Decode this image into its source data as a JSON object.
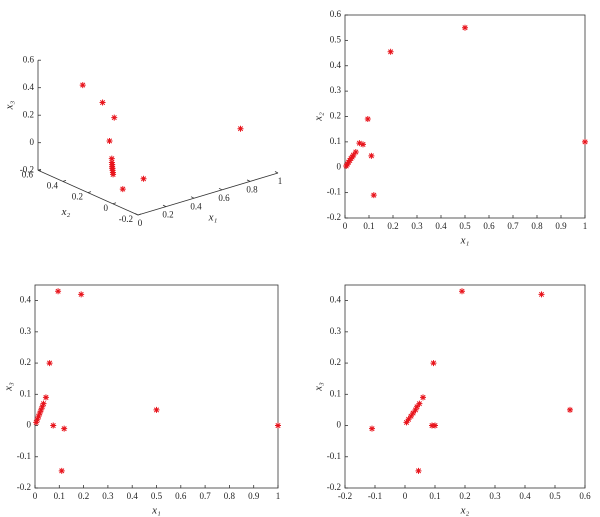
{
  "chart_data": [
    {
      "type": "scatter3d",
      "xlabel": "x₁",
      "ylabel": "x₂",
      "zlabel": "x₃",
      "xlim": [
        0,
        1
      ],
      "xticks": [
        0,
        0.2,
        0.4,
        0.6,
        0.8,
        1
      ],
      "ylim": [
        -0.2,
        0.6
      ],
      "yticks": [
        -0.2,
        0,
        0.2,
        0.4,
        0.6
      ],
      "zlim": [
        -0.2,
        0.6
      ],
      "zticks": [
        -0.2,
        0,
        0.2,
        0.4,
        0.6
      ],
      "color": "#e8141c",
      "x": [
        1,
        0.5,
        0.19,
        0.095,
        0.06,
        0.12,
        0.11,
        0.075,
        0.005,
        0.01,
        0.015,
        0.02,
        0.025,
        0.03,
        0.035,
        0.045
      ],
      "y": [
        0.1,
        0.55,
        0.455,
        0.19,
        0.095,
        -0.11,
        0.045,
        0.09,
        0.005,
        0.012,
        0.02,
        0.027,
        0.035,
        0.04,
        0.048,
        0.06
      ],
      "z": [
        0,
        0.05,
        0.42,
        0.43,
        0.2,
        -0.01,
        -0.145,
        0,
        0.01,
        0.02,
        0.03,
        0.04,
        0.05,
        0.06,
        0.07,
        0.09
      ]
    },
    {
      "type": "scatter",
      "xlabel": "x₁",
      "ylabel": "x₂",
      "xlim": [
        0,
        1
      ],
      "xticks": [
        0,
        0.1,
        0.2,
        0.3,
        0.4,
        0.5,
        0.6,
        0.7,
        0.8,
        0.9,
        1
      ],
      "ylim": [
        -0.2,
        0.6
      ],
      "yticks": [
        -0.2,
        -0.1,
        0,
        0.1,
        0.2,
        0.3,
        0.4,
        0.5,
        0.6
      ],
      "color": "#e8141c",
      "x": [
        1,
        0.5,
        0.19,
        0.095,
        0.06,
        0.12,
        0.11,
        0.075,
        0.005,
        0.01,
        0.015,
        0.02,
        0.025,
        0.03,
        0.035,
        0.045
      ],
      "y": [
        0.1,
        0.55,
        0.455,
        0.19,
        0.095,
        -0.11,
        0.045,
        0.09,
        0.005,
        0.012,
        0.02,
        0.027,
        0.035,
        0.04,
        0.048,
        0.06
      ]
    },
    {
      "type": "scatter",
      "xlabel": "x₁",
      "ylabel": "x₃",
      "xlim": [
        0,
        1
      ],
      "xticks": [
        0,
        0.1,
        0.2,
        0.3,
        0.4,
        0.5,
        0.6,
        0.7,
        0.8,
        0.9,
        1
      ],
      "ylim": [
        -0.2,
        0.45
      ],
      "yticks": [
        -0.2,
        -0.1,
        0,
        0.1,
        0.2,
        0.3,
        0.4
      ],
      "color": "#e8141c",
      "x": [
        1,
        0.5,
        0.19,
        0.095,
        0.06,
        0.12,
        0.11,
        0.075,
        0.005,
        0.01,
        0.015,
        0.02,
        0.025,
        0.03,
        0.035,
        0.045
      ],
      "y": [
        0,
        0.05,
        0.42,
        0.43,
        0.2,
        -0.01,
        -0.145,
        0,
        0.01,
        0.02,
        0.03,
        0.04,
        0.05,
        0.06,
        0.07,
        0.09
      ]
    },
    {
      "type": "scatter",
      "xlabel": "x₂",
      "ylabel": "x₃",
      "xlim": [
        -0.2,
        0.6
      ],
      "xticks": [
        -0.2,
        -0.1,
        0,
        0.1,
        0.2,
        0.3,
        0.4,
        0.5,
        0.6
      ],
      "ylim": [
        -0.2,
        0.45
      ],
      "yticks": [
        -0.2,
        -0.1,
        0,
        0.1,
        0.2,
        0.3,
        0.4
      ],
      "color": "#e8141c",
      "x": [
        0.1,
        0.55,
        0.455,
        0.19,
        0.095,
        -0.11,
        0.045,
        0.09,
        0.005,
        0.012,
        0.02,
        0.027,
        0.035,
        0.04,
        0.048,
        0.06
      ],
      "y": [
        0,
        0.05,
        0.42,
        0.43,
        0.2,
        -0.01,
        -0.145,
        0,
        0.01,
        0.02,
        0.03,
        0.04,
        0.05,
        0.06,
        0.07,
        0.09
      ]
    }
  ]
}
